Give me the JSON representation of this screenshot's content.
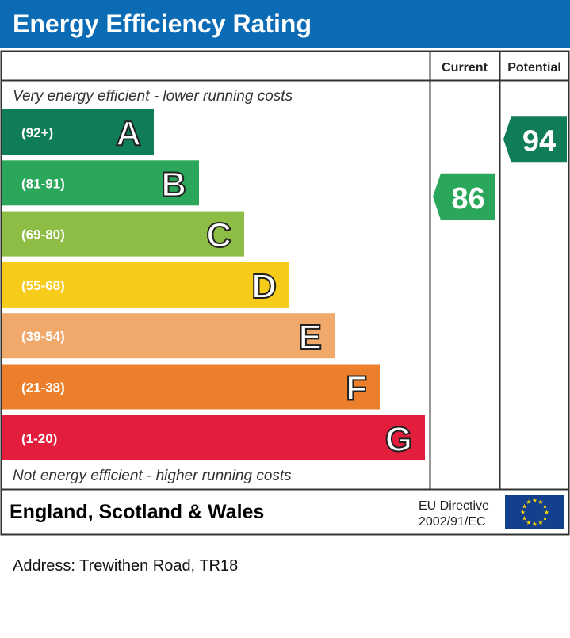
{
  "title": "Energy Efficiency Rating",
  "chart_data": {
    "type": "bar",
    "columns": [
      "Current",
      "Potential"
    ],
    "top_note": "Very energy efficient - lower running costs",
    "bottom_note": "Not energy efficient - higher running costs",
    "bands": [
      {
        "letter": "A",
        "range": "(92+)",
        "color": "#0f7d58"
      },
      {
        "letter": "B",
        "range": "(81-91)",
        "color": "#2aa75a"
      },
      {
        "letter": "C",
        "range": "(69-80)",
        "color": "#8dbd45"
      },
      {
        "letter": "D",
        "range": "(55-68)",
        "color": "#f6cb1a"
      },
      {
        "letter": "E",
        "range": "(39-54)",
        "color": "#f1a86b"
      },
      {
        "letter": "F",
        "range": "(21-38)",
        "color": "#ec7f2b"
      },
      {
        "letter": "G",
        "range": "(1-20)",
        "color": "#e31d3c"
      }
    ],
    "current": {
      "value": 86,
      "band": "B",
      "color": "#2aa75a"
    },
    "potential": {
      "value": 94,
      "band": "A",
      "color": "#0f7d58"
    }
  },
  "footer": {
    "region": "England, Scotland & Wales",
    "directive_line1": "EU Directive",
    "directive_line2": "2002/91/EC",
    "flag_color": "#133f8c",
    "star_color": "#ffd700"
  },
  "address": "Address: Trewithen Road, TR18"
}
